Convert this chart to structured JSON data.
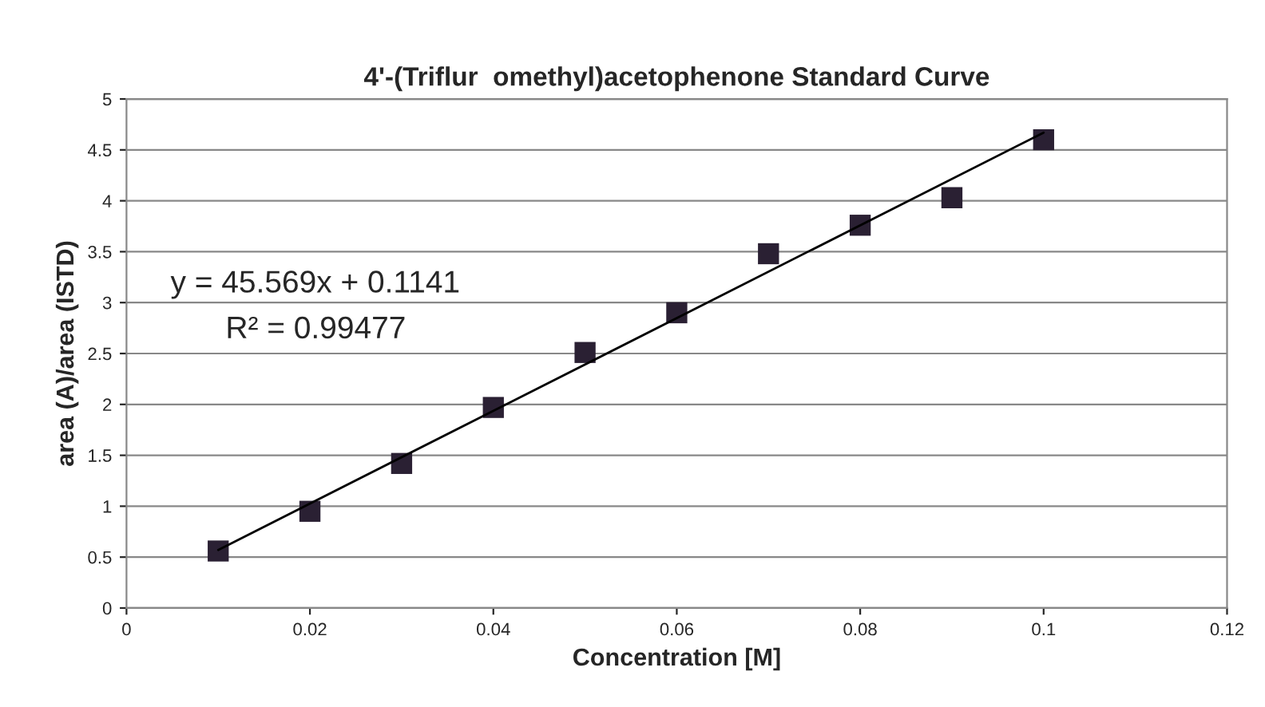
{
  "chart_data": {
    "type": "scatter",
    "title": "4'-(Triflur  omethyl)acetophenone Standard Curve",
    "xlabel": "Concentration [M]",
    "ylabel": "area (A)/area (ISTD)",
    "x": [
      0.01,
      0.02,
      0.03,
      0.04,
      0.05,
      0.06,
      0.07,
      0.08,
      0.09,
      0.1
    ],
    "series": [
      {
        "color": "#2a2033",
        "marker": "square",
        "values": [
          0.56,
          0.95,
          1.42,
          1.97,
          2.51,
          2.9,
          3.48,
          3.76,
          4.03,
          4.6
        ]
      },
      {
        "type": "line",
        "color": "#000000",
        "marker": "none",
        "x": [
          0.01,
          0.1
        ],
        "values": [
          0.57,
          4.67
        ]
      }
    ],
    "xlim": [
      0,
      0.12
    ],
    "xticks": [
      0,
      0.02,
      0.04,
      0.06,
      0.08,
      0.1,
      0.12
    ],
    "ylim": [
      0,
      5
    ],
    "yticks": [
      0,
      0.5,
      1,
      1.5,
      2,
      2.5,
      3,
      3.5,
      4,
      4.5,
      5
    ],
    "grid": "y",
    "annotations": [
      "y = 45.569x + 0.1141",
      "R² = 0.99477"
    ]
  }
}
